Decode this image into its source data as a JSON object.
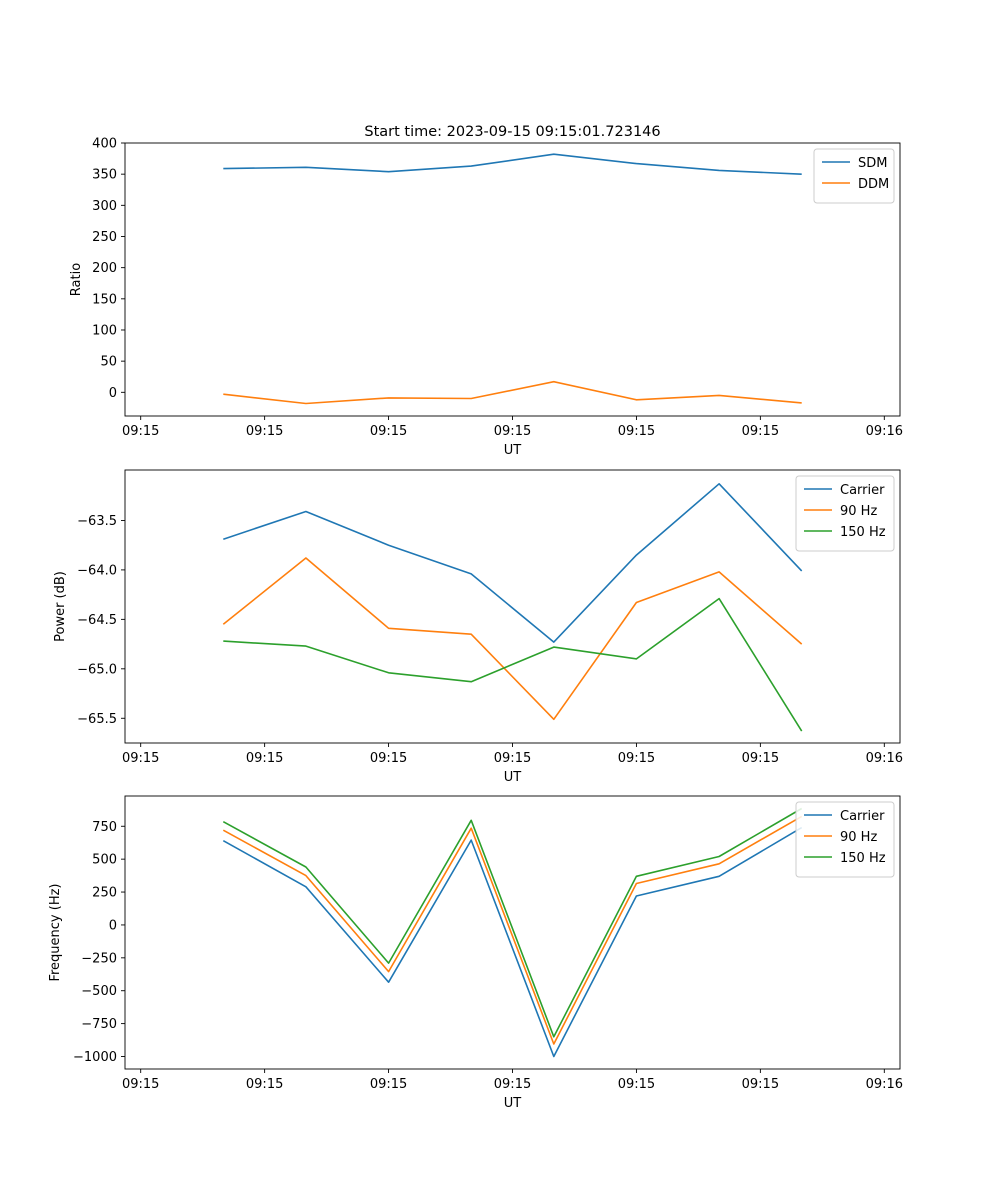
{
  "figure": {
    "title": "Start time: 2023-09-15 09:15:01.723146"
  },
  "chart_data": [
    {
      "type": "line",
      "title": "Start time: 2023-09-15 09:15:01.723146",
      "xlabel": "UT",
      "ylabel": "Ratio",
      "x_tick_labels": [
        "09:15",
        "09:15",
        "09:15",
        "09:15",
        "09:15",
        "09:15",
        "09:16"
      ],
      "xlim": [
        -0.19,
        9.19
      ],
      "x": [
        1,
        2,
        3,
        4,
        5,
        6,
        7,
        8
      ],
      "ylim": [
        -38,
        400
      ],
      "y_ticks": [
        0,
        50,
        100,
        150,
        200,
        250,
        300,
        350,
        400
      ],
      "legend": "top-right",
      "series": [
        {
          "name": "SDM",
          "color": "#1f77b4",
          "values": [
            359,
            361,
            354,
            363,
            382,
            367,
            356,
            350
          ]
        },
        {
          "name": "DDM",
          "color": "#ff7f0e",
          "values": [
            -3,
            -18,
            -9,
            -10,
            17,
            -12,
            -5,
            -17
          ]
        }
      ]
    },
    {
      "type": "line",
      "title": "",
      "xlabel": "UT",
      "ylabel": "Power (dB)",
      "x_tick_labels": [
        "09:15",
        "09:15",
        "09:15",
        "09:15",
        "09:15",
        "09:15",
        "09:16"
      ],
      "xlim": [
        -0.19,
        9.19
      ],
      "x": [
        1,
        2,
        3,
        4,
        5,
        6,
        7,
        8
      ],
      "ylim": [
        -65.75,
        -62.99
      ],
      "y_ticks": [
        -65.5,
        -65.0,
        -64.5,
        -64.0,
        -63.5
      ],
      "y_tick_labels": [
        "−65.5",
        "−65.0",
        "−64.5",
        "−64.0",
        "−63.5"
      ],
      "legend": "top-right",
      "series": [
        {
          "name": "Carrier",
          "color": "#1f77b4",
          "values": [
            -63.69,
            -63.41,
            -63.75,
            -64.04,
            -64.73,
            -63.85,
            -63.13,
            -64.01
          ]
        },
        {
          "name": "90 Hz",
          "color": "#ff7f0e",
          "values": [
            -64.55,
            -63.88,
            -64.59,
            -64.65,
            -65.51,
            -64.33,
            -64.02,
            -64.75
          ]
        },
        {
          "name": "150 Hz",
          "color": "#2ca02c",
          "values": [
            -64.72,
            -64.77,
            -65.04,
            -65.13,
            -64.78,
            -64.9,
            -64.29,
            -65.63
          ]
        }
      ]
    },
    {
      "type": "line",
      "title": "",
      "xlabel": "UT",
      "ylabel": "Frequency (Hz)",
      "x_tick_labels": [
        "09:15",
        "09:15",
        "09:15",
        "09:15",
        "09:15",
        "09:15",
        "09:16"
      ],
      "xlim": [
        -0.19,
        9.19
      ],
      "x": [
        1,
        2,
        3,
        4,
        5,
        6,
        7,
        8
      ],
      "ylim": [
        -1095,
        980
      ],
      "y_ticks": [
        -1000,
        -750,
        -500,
        -250,
        0,
        250,
        500,
        750
      ],
      "y_tick_labels": [
        "−1000",
        "−750",
        "−500",
        "−250",
        "0",
        "250",
        "500",
        "750"
      ],
      "legend": "top-right",
      "series": [
        {
          "name": "Carrier",
          "color": "#1f77b4",
          "values": [
            640,
            290,
            -435,
            645,
            -1000,
            220,
            370,
            740
          ]
        },
        {
          "name": "90 Hz",
          "color": "#ff7f0e",
          "values": [
            720,
            375,
            -355,
            735,
            -905,
            315,
            465,
            825
          ]
        },
        {
          "name": "150 Hz",
          "color": "#2ca02c",
          "values": [
            785,
            440,
            -290,
            795,
            -850,
            370,
            520,
            885
          ]
        }
      ]
    }
  ]
}
